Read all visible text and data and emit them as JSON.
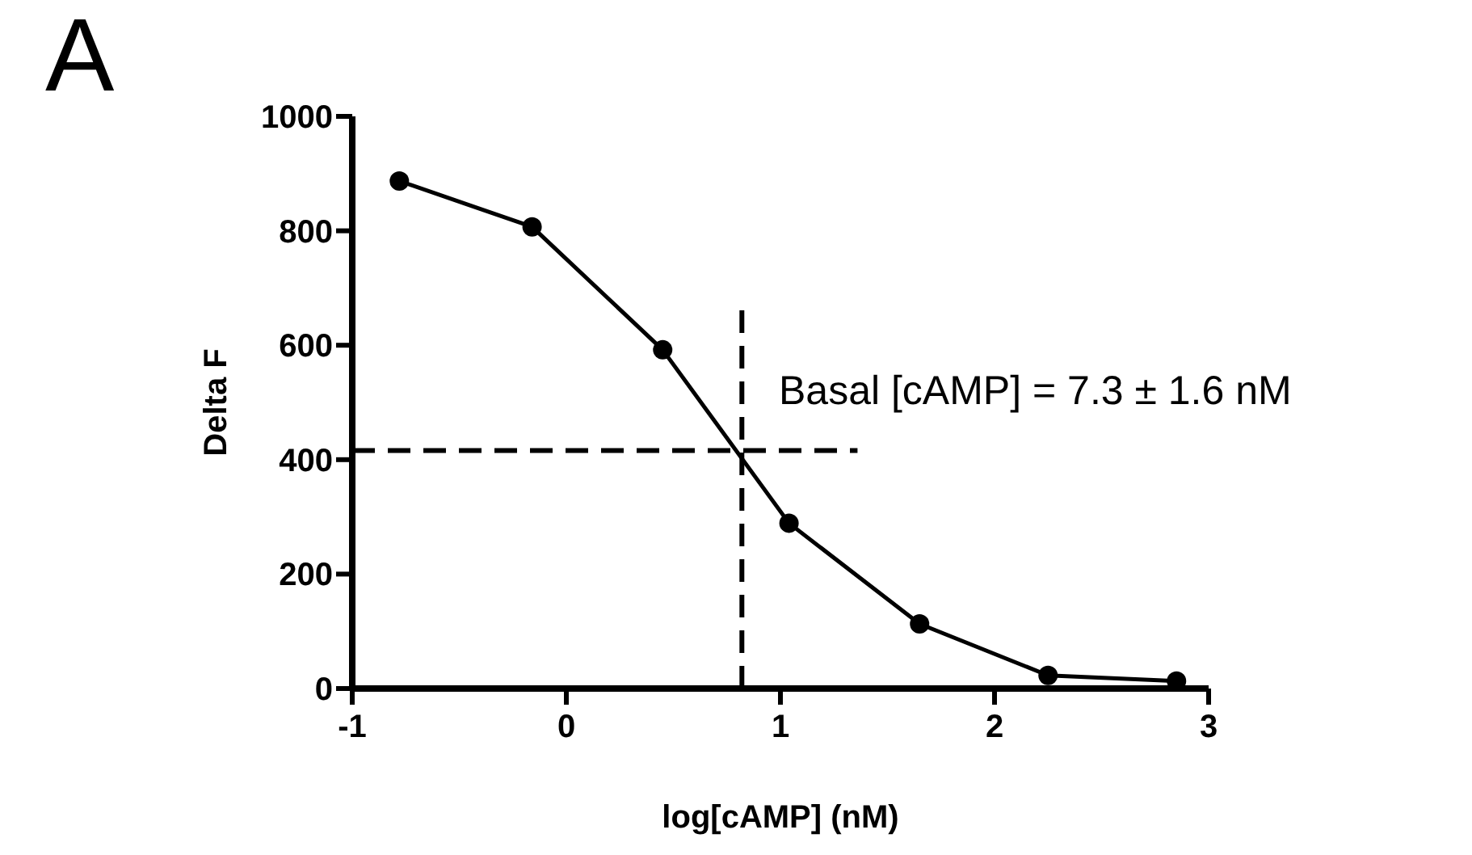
{
  "chart_data": {
    "type": "line",
    "xlabel": "log[cAMP] (nM)",
    "ylabel": "Delta F",
    "x": [
      -0.78,
      -0.16,
      0.45,
      1.04,
      1.65,
      2.25,
      2.85
    ],
    "series": [
      {
        "color": "#000000",
        "values": [
          887,
          807,
          592,
          289,
          113,
          23,
          13
        ]
      }
    ],
    "xlim": [
      -1,
      3
    ],
    "xticks": [
      -1,
      0,
      1,
      2,
      3
    ],
    "ylim": [
      0,
      1000
    ],
    "yticks": [
      0,
      200,
      400,
      600,
      800,
      1000
    ],
    "marker": "circle",
    "line_style": "solid",
    "grid": false,
    "ref_lines": [
      {
        "axis": "x",
        "value": 0.82,
        "line_style": "dashed",
        "color": "#000000"
      },
      {
        "axis": "y",
        "value": 416,
        "line_style": "dashed",
        "color": "#000000"
      }
    ],
    "annotations": [
      "A",
      "Basal [cAMP] = 7.3 ± 1.6 nM"
    ]
  }
}
